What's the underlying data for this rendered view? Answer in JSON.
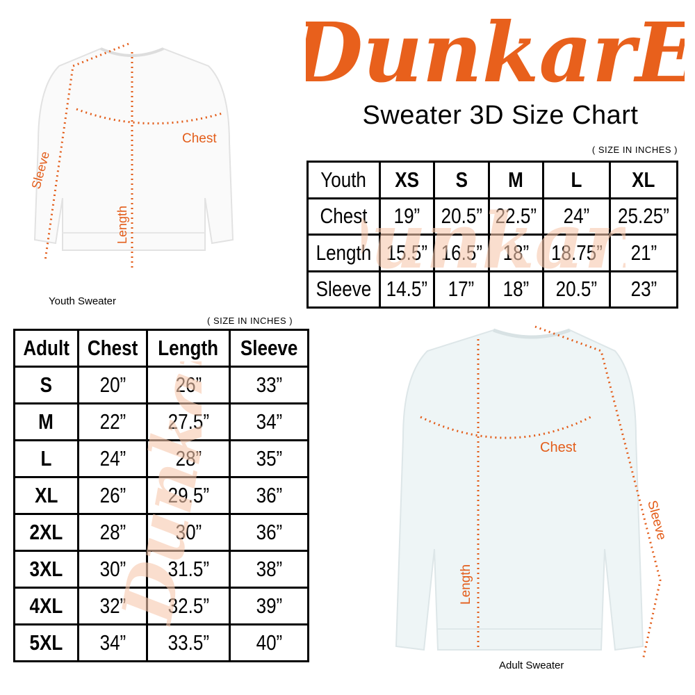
{
  "brand": {
    "logo_text": "DunkarE",
    "accent_color": "#e8601c"
  },
  "title": "Sweater 3D Size Chart",
  "youth": {
    "units_note": "( SIZE IN INCHES )",
    "header": [
      "Youth",
      "XS",
      "S",
      "M",
      "L",
      "XL"
    ],
    "rows": [
      [
        "Chest",
        "19”",
        "20.5”",
        "22.5”",
        "24”",
        "25.25”"
      ],
      [
        "Length",
        "15.5”",
        "16.5”",
        "18”",
        "18.75”",
        "21”"
      ],
      [
        "Sleeve",
        "14.5”",
        "17”",
        "18”",
        "20.5”",
        "23”"
      ]
    ],
    "image_caption": "Youth Sweater",
    "labels": {
      "chest": "Chest",
      "length": "Length",
      "sleeve": "Sleeve"
    }
  },
  "adult": {
    "units_note": "( SIZE IN INCHES )",
    "header": [
      "Adult",
      "Chest",
      "Length",
      "Sleeve"
    ],
    "rows": [
      [
        "S",
        "20”",
        "26”",
        "33”"
      ],
      [
        "M",
        "22”",
        "27.5”",
        "34”"
      ],
      [
        "L",
        "24”",
        "28”",
        "35”"
      ],
      [
        "XL",
        "26”",
        "29.5”",
        "36”"
      ],
      [
        "2XL",
        "28”",
        "30”",
        "36”"
      ],
      [
        "3XL",
        "30”",
        "31.5”",
        "38”"
      ],
      [
        "4XL",
        "32”",
        "32.5”",
        "39”"
      ],
      [
        "5XL",
        "34”",
        "33.5”",
        "40”"
      ]
    ],
    "image_caption": "Adult Sweater",
    "labels": {
      "chest": "Chest",
      "length": "Length",
      "sleeve": "Sleeve"
    }
  }
}
